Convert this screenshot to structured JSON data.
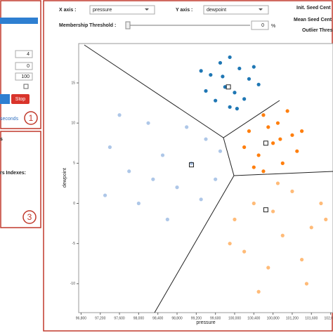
{
  "left_panel": {
    "inputs": [
      "4",
      "0",
      "100"
    ],
    "stop_button": "Stop",
    "seconds_text": "seconds",
    "panel1_badge": "1",
    "label_s": "s",
    "indexes_label": "rs Indexes:",
    "panel3_badge": "3"
  },
  "controls": {
    "x_axis_label": "X axis :",
    "x_axis_value": "pressure",
    "y_axis_label": "Y axis :",
    "y_axis_value": "dewpoint",
    "membership_label": "Membership Threshold :",
    "membership_value": "0",
    "percent": "%",
    "legend": [
      "Init. Seed Cent",
      "Mean Seed Cent",
      "Outlier Thres"
    ]
  },
  "chart_data": {
    "type": "scatter",
    "x_label": "pressure",
    "y_label": "dewpoint",
    "xlim": [
      96750,
      102050
    ],
    "ylim": [
      -13.6,
      19.9
    ],
    "xticks": [
      {
        "value": 96800,
        "label": "96,800"
      },
      {
        "value": 97200,
        "label": "97,200"
      },
      {
        "value": 97600,
        "label": "97,600"
      },
      {
        "value": 98000,
        "label": "98,000"
      },
      {
        "value": 98400,
        "label": "98,400"
      },
      {
        "value": 98800,
        "label": "98,800"
      },
      {
        "value": 99200,
        "label": "99,200"
      },
      {
        "value": 99600,
        "label": "99,600"
      },
      {
        "value": 100000,
        "label": "100,000"
      },
      {
        "value": 100400,
        "label": "100,400"
      },
      {
        "value": 100800,
        "label": "100,800"
      },
      {
        "value": 101200,
        "label": "101,200"
      },
      {
        "value": 101600,
        "label": "101,600"
      },
      {
        "value": 102000,
        "label": "102,000"
      }
    ],
    "yticks": [
      -10,
      -5,
      0,
      5,
      10,
      15
    ],
    "series": [
      {
        "color": "#1f77b4",
        "centroid": [
          99870,
          14.5
        ],
        "x": [
          99500,
          99700,
          99900,
          100100,
          100300,
          99800,
          100000,
          99400,
          99600,
          100200,
          100400,
          99900,
          99300,
          100500,
          99750,
          100050
        ],
        "values": [
          16,
          17.5,
          18.2,
          16.8,
          15.5,
          14.5,
          13.8,
          14,
          12.8,
          13,
          17,
          12,
          16.5,
          14.8,
          15.8,
          11.8
        ]
      },
      {
        "color": "#ff7f0e",
        "centroid": [
          100650,
          7.5
        ],
        "x": [
          100300,
          100600,
          100900,
          101200,
          100500,
          100800,
          101000,
          100400,
          101300,
          100700,
          100200,
          101100,
          100600,
          100950,
          101400
        ],
        "values": [
          9,
          11,
          10,
          8.5,
          6,
          7.5,
          5,
          4.5,
          6.5,
          9.5,
          7,
          11.5,
          4,
          8,
          9
        ]
      },
      {
        "color": "#aec7e8",
        "centroid": [
          99100,
          4.8
        ],
        "x": [
          97400,
          97800,
          98200,
          98500,
          98800,
          99100,
          99400,
          99600,
          98000,
          98600,
          99300,
          97600,
          99000,
          98300,
          99700,
          97300
        ],
        "values": [
          7,
          4,
          10,
          6,
          2,
          5,
          8,
          3,
          0,
          -2,
          0.5,
          11,
          9.5,
          3,
          6.5,
          1
        ]
      },
      {
        "color": "#ffbb78",
        "centroid": [
          100650,
          -0.8
        ],
        "x": [
          100000,
          100400,
          100800,
          101200,
          101600,
          100200,
          100700,
          101000,
          101400,
          101800,
          100500,
          100900,
          101500,
          99900,
          101900
        ],
        "values": [
          -2,
          0,
          -1,
          1.5,
          -3,
          -6,
          -8,
          -4,
          -7,
          0,
          -11,
          2.5,
          -10,
          -5,
          -2
        ]
      }
    ]
  }
}
